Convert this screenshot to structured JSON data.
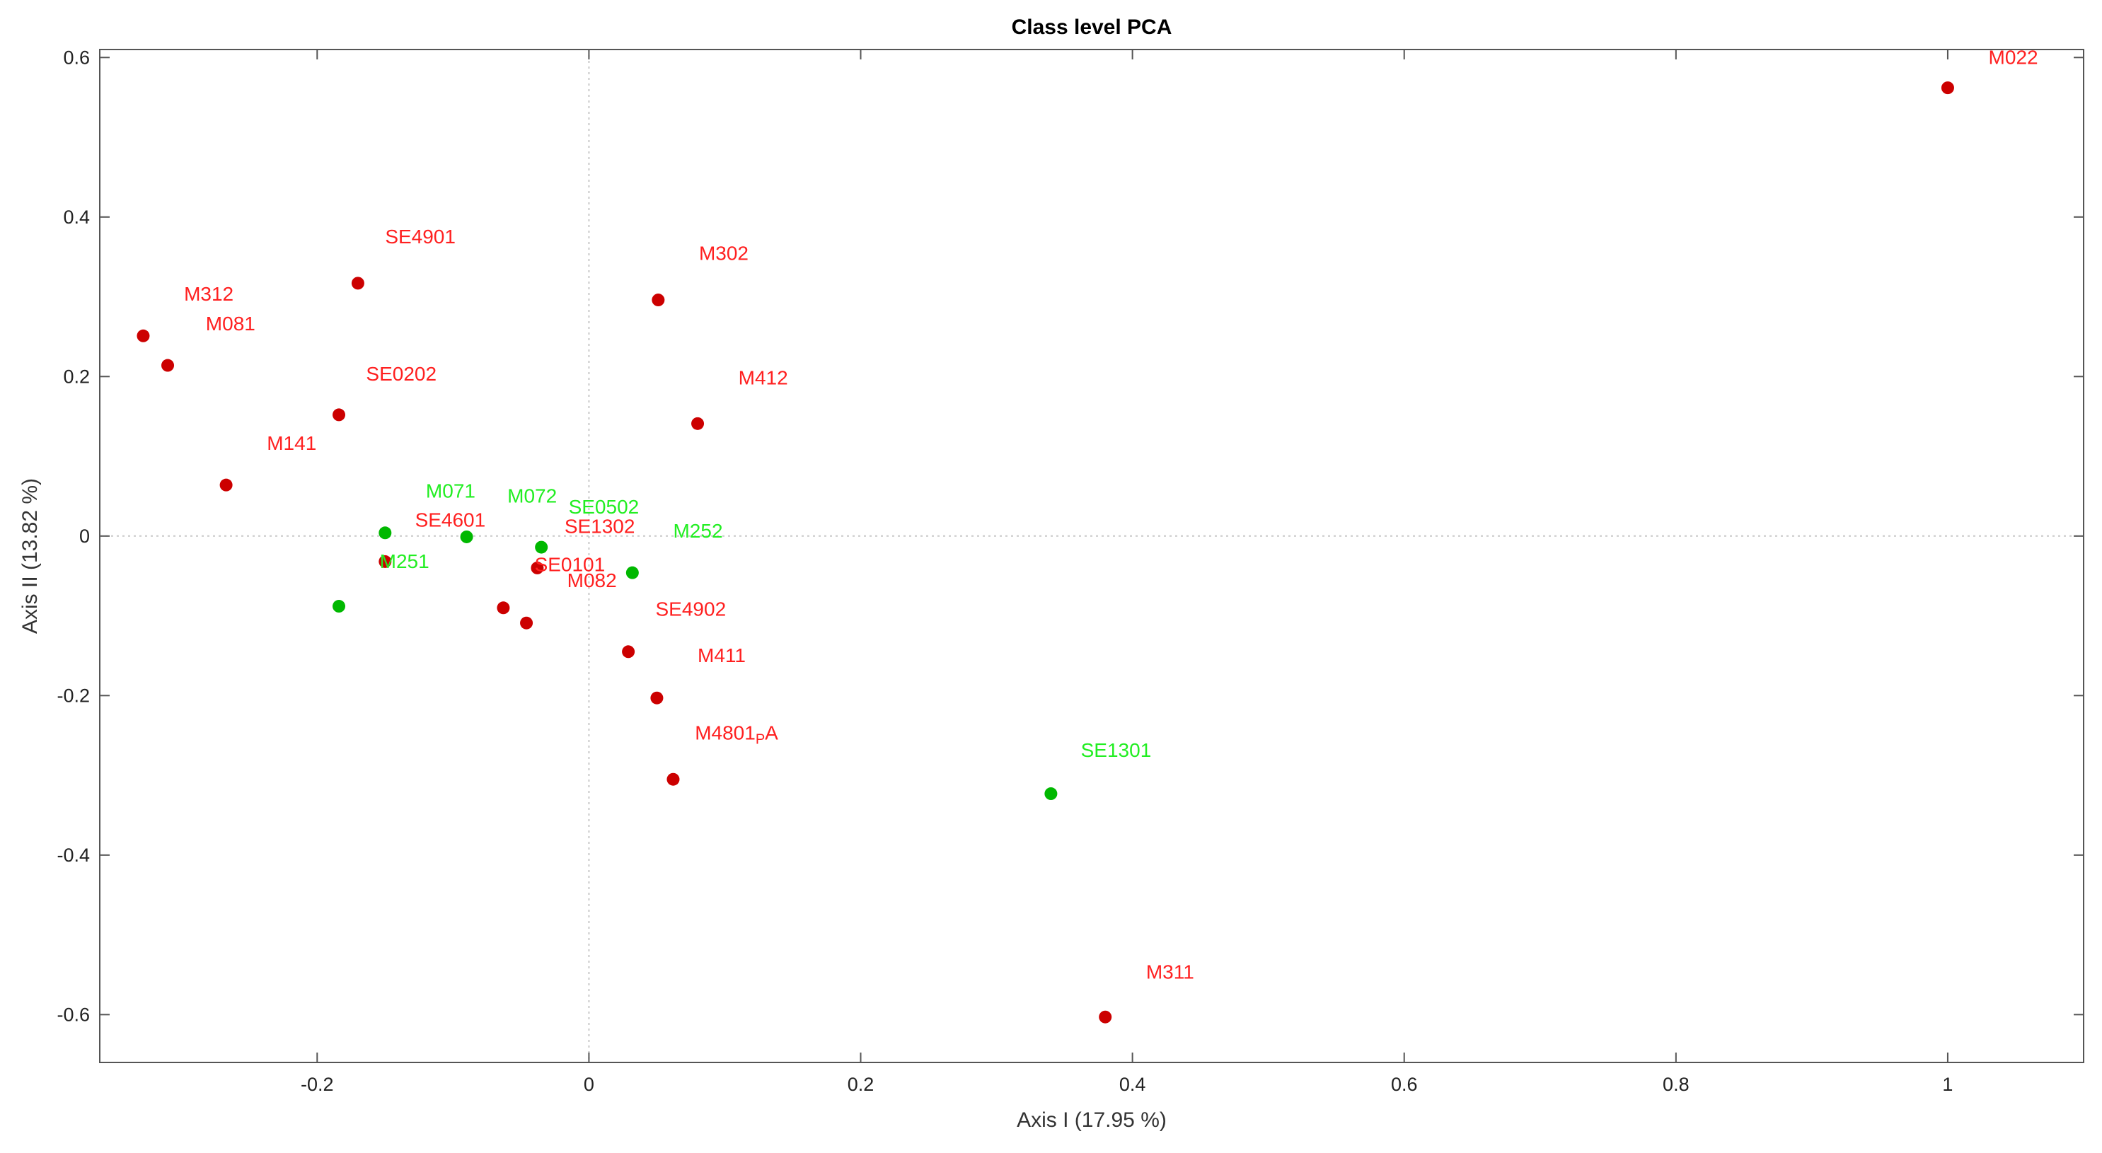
{
  "chart_data": {
    "type": "scatter",
    "title": "Class level PCA",
    "xlabel": "Axis I (17.95 %)",
    "ylabel": "Axis II (13.82 %)",
    "xlim": [
      -0.36,
      1.1
    ],
    "ylim": [
      -0.66,
      0.61
    ],
    "xticks": [
      {
        "value": -0.2,
        "label": "-0.2"
      },
      {
        "value": 0,
        "label": "0"
      },
      {
        "value": 0.2,
        "label": "0.2"
      },
      {
        "value": 0.4,
        "label": "0.4"
      },
      {
        "value": 0.6,
        "label": "0.6"
      },
      {
        "value": 0.8,
        "label": "0.8"
      },
      {
        "value": 1,
        "label": "1"
      }
    ],
    "yticks": [
      {
        "value": -0.6,
        "label": "-0.6"
      },
      {
        "value": -0.4,
        "label": "-0.4"
      },
      {
        "value": -0.2,
        "label": "-0.2"
      },
      {
        "value": 0,
        "label": "0"
      },
      {
        "value": 0.2,
        "label": "0.2"
      },
      {
        "value": 0.4,
        "label": "0.4"
      },
      {
        "value": 0.6,
        "label": "0.6"
      }
    ],
    "zero_lines": true,
    "colors": {
      "red": "#cc0000",
      "green": "#00b800",
      "red_label": "#ff2020",
      "green_label": "#22ee22"
    },
    "points": [
      {
        "label": "M022",
        "x": 1.0,
        "y": 0.562,
        "color": "red",
        "lx": 1.03,
        "ly": 0.592
      },
      {
        "label": "SE4901",
        "x": -0.17,
        "y": 0.317,
        "color": "red",
        "lx": -0.15,
        "ly": 0.367
      },
      {
        "label": "M302",
        "x": 0.051,
        "y": 0.296,
        "color": "red",
        "lx": 0.081,
        "ly": 0.346
      },
      {
        "label": "M312",
        "x": -0.328,
        "y": 0.251,
        "color": "red",
        "lx": -0.298,
        "ly": 0.295
      },
      {
        "label": "M081",
        "x": -0.31,
        "y": 0.214,
        "color": "red",
        "lx": -0.282,
        "ly": 0.258
      },
      {
        "label": "SE0202",
        "x": -0.184,
        "y": 0.152,
        "color": "red",
        "lx": -0.164,
        "ly": 0.195
      },
      {
        "label": "M412",
        "x": 0.08,
        "y": 0.141,
        "color": "red",
        "lx": 0.11,
        "ly": 0.19
      },
      {
        "label": "M141",
        "x": -0.267,
        "y": 0.064,
        "color": "red",
        "lx": -0.237,
        "ly": 0.108
      },
      {
        "label": "M071",
        "x": -0.15,
        "y": 0.004,
        "color": "green",
        "lx": -0.12,
        "ly": 0.048
      },
      {
        "label": "SE4601",
        "x": -0.15,
        "y": -0.032,
        "color": "red",
        "lx": -0.128,
        "ly": 0.012
      },
      {
        "label": "M251",
        "x": -0.184,
        "y": -0.088,
        "color": "green",
        "lx": -0.154,
        "ly": -0.04
      },
      {
        "label": "M072",
        "x": -0.09,
        "y": -0.001,
        "color": "green",
        "lx": -0.06,
        "ly": 0.042
      },
      {
        "label": "SE0502",
        "x": -0.035,
        "y": -0.014,
        "color": "green",
        "lx": -0.015,
        "ly": 0.028
      },
      {
        "label": "SE1302",
        "x": -0.038,
        "y": -0.04,
        "color": "red",
        "lx": -0.018,
        "ly": 0.004
      },
      {
        "label": "SE0101",
        "x": -0.063,
        "y": -0.09,
        "color": "red",
        "lx": -0.04,
        "ly": -0.044
      },
      {
        "label": "M082",
        "x": -0.046,
        "y": -0.109,
        "color": "red",
        "lx": -0.016,
        "ly": -0.064
      },
      {
        "label": "M252",
        "x": 0.032,
        "y": -0.046,
        "color": "green",
        "lx": 0.062,
        "ly": -0.002
      },
      {
        "label": "SE4902",
        "x": 0.029,
        "y": -0.145,
        "color": "red",
        "lx": 0.049,
        "ly": -0.1
      },
      {
        "label": "M411",
        "x": 0.05,
        "y": -0.203,
        "color": "red",
        "lx": 0.08,
        "ly": -0.158
      },
      {
        "label": "M4801",
        "subscript": "P",
        "suffix": "A",
        "x": 0.062,
        "y": -0.305,
        "color": "red",
        "lx": 0.078,
        "ly": -0.255
      },
      {
        "label": "SE1301",
        "x": 0.34,
        "y": -0.323,
        "color": "green",
        "lx": 0.362,
        "ly": -0.277
      },
      {
        "label": "M311",
        "x": 0.38,
        "y": -0.603,
        "color": "red",
        "lx": 0.41,
        "ly": -0.555
      }
    ]
  }
}
